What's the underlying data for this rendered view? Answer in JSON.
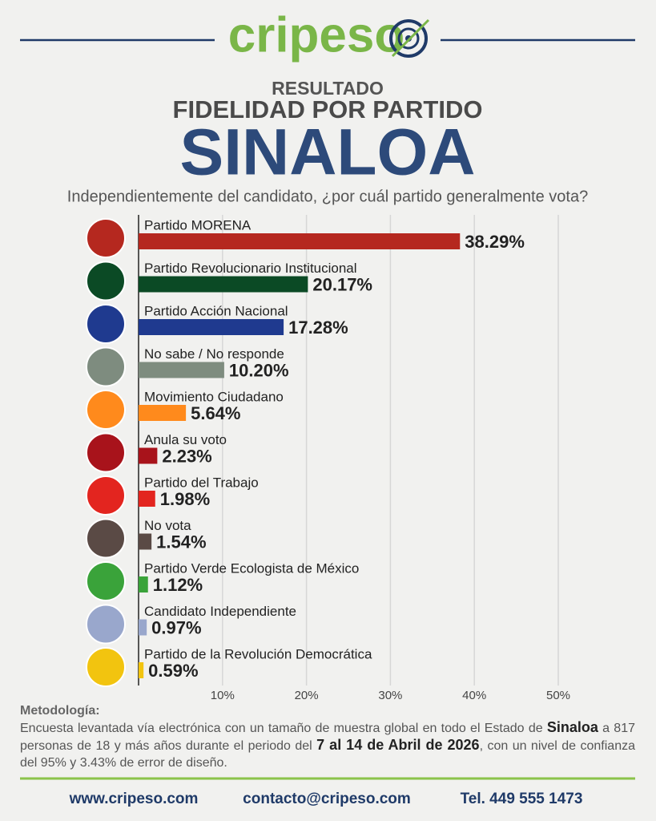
{
  "header": {
    "logo": "cripeso",
    "kicker": "RESULTADO",
    "heading": "FIDELIDAD POR PARTIDO"
  },
  "chart_data": {
    "type": "bar",
    "orientation": "horizontal",
    "title": "SINALOA",
    "subtitle": "Independientemente del candidato, ¿por cuál partido generalmente vota?",
    "categories": [
      "Partido MORENA",
      "Partido Revolucionario Institucional",
      "Partido Acción Nacional",
      "No sabe / No responde",
      "Movimiento Ciudadano",
      "Anula su voto",
      "Partido del Trabajo",
      "No vota",
      "Partido Verde Ecologista de México",
      "Candidato Independiente",
      "Partido de la Revolución Democrática"
    ],
    "values": [
      38.29,
      20.17,
      17.28,
      10.2,
      5.64,
      2.23,
      1.98,
      1.54,
      1.12,
      0.97,
      0.59
    ],
    "value_labels": [
      "38.29%",
      "20.17%",
      "17.28%",
      "10.20%",
      "5.64%",
      "2.23%",
      "1.98%",
      "1.54%",
      "1.12%",
      "0.97%",
      "0.59%"
    ],
    "colors": [
      "#b5281f",
      "#0b4a25",
      "#1f3a8f",
      "#7e8c7f",
      "#ff8a1c",
      "#a8131b",
      "#e3251f",
      "#5a4a45",
      "#3aa33a",
      "#99a7cc",
      "#f2c40f"
    ],
    "xlim": [
      0,
      50
    ],
    "xticks": [
      {
        "value": 10,
        "label": "10%"
      },
      {
        "value": 20,
        "label": "20%"
      },
      {
        "value": 30,
        "label": "30%"
      },
      {
        "value": 40,
        "label": "40%"
      },
      {
        "value": 50,
        "label": "50%"
      }
    ],
    "grid": true
  },
  "methodology": {
    "title": "Metodología:",
    "text": [
      {
        "text": "Encuesta levantada vía electrónica con un tamaño de muestra global en todo el Estado de ",
        "bold": false
      },
      {
        "text": "Sinaloa",
        "bold": true
      },
      {
        "text": " a 817 personas de 18 y más años durante el periodo del ",
        "bold": false
      },
      {
        "text": "7 al 14 de Abril de 2026",
        "bold": true
      },
      {
        "text": ", con un nivel de confianza del 95% y 3.43% de error de diseño.",
        "bold": false
      }
    ]
  },
  "footer": {
    "web": "www.cripeso.com",
    "email": "contacto@cripeso.com",
    "phone": "Tel. 449 555 1473"
  }
}
